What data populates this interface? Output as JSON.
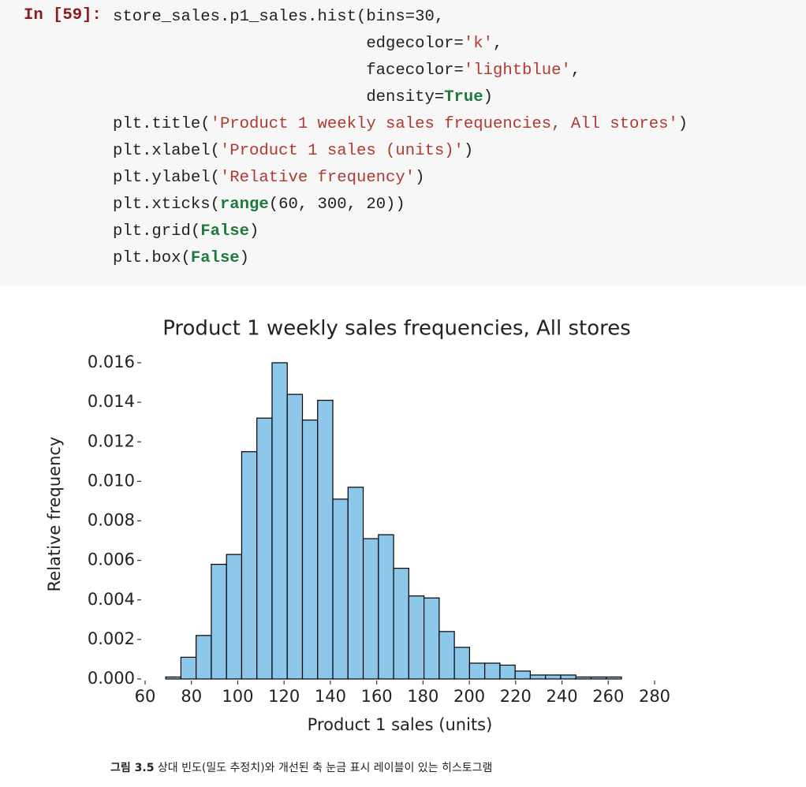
{
  "prompt": "In [59]:",
  "code": [
    "store_sales.p1_sales.hist(bins=30,",
    "                          edgecolor='k',",
    "                          facecolor='lightblue',",
    "                          density=True)",
    "plt.title('Product 1 weekly sales frequencies, All stores')",
    "plt.xlabel('Product 1 sales (units)')",
    "plt.ylabel('Relative frequency')",
    "plt.xticks(range(60, 300, 20))",
    "plt.grid(False)",
    "plt.box(False)"
  ],
  "chart_data": {
    "type": "histogram",
    "title": "Product 1 weekly sales frequencies, All stores",
    "xlabel": "Product 1 sales (units)",
    "ylabel": "Relative frequency",
    "bins": [
      68.9,
      75.46,
      82.02,
      88.58,
      95.14,
      101.7,
      108.26,
      114.82,
      121.38,
      127.94,
      134.5,
      141.06,
      147.62,
      154.18,
      160.74,
      167.3,
      173.86,
      180.42,
      186.98,
      193.54,
      200.1,
      206.66,
      213.22,
      219.78,
      226.34,
      232.9,
      239.46,
      246.02,
      252.58,
      259.14,
      265.7
    ],
    "values": [
      0.0001,
      0.0011,
      0.0022,
      0.0058,
      0.0063,
      0.0115,
      0.0132,
      0.016,
      0.0144,
      0.0131,
      0.0141,
      0.0091,
      0.0097,
      0.0071,
      0.0073,
      0.0056,
      0.0042,
      0.0041,
      0.0024,
      0.0016,
      0.0008,
      0.0008,
      0.0007,
      0.0004,
      0.0002,
      0.0002,
      0.0002,
      0.0001,
      0.0001,
      0.0001
    ],
    "color": "#8dc8ea",
    "edgecolor": "#000000",
    "xlim": [
      60,
      280
    ],
    "xticks": [
      60,
      80,
      100,
      120,
      140,
      160,
      180,
      200,
      220,
      240,
      260,
      280
    ],
    "ylim": [
      0,
      0.016
    ],
    "yticks": [
      {
        "value": 0,
        "label": "0.000"
      },
      0.002,
      0.004,
      0.006,
      0.008,
      {
        "value": 0.01,
        "label": "0.010"
      },
      0.012,
      0.014,
      0.016
    ],
    "grid": false
  },
  "caption": {
    "label": "그림 3.5",
    "text": "상대 빈도(밀도 추정치)와 개선된 축 눈금 표시 레이블이 있는 히스토그램"
  }
}
